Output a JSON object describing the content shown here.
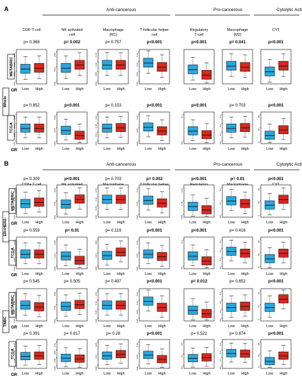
{
  "panels": [
    {
      "letter": "A",
      "groups": [
        {
          "label": "Anti-cancerous"
        },
        {
          "label": "Pro-cancerous"
        },
        {
          "label": "Cytolytic Activity"
        }
      ],
      "columns": [
        {
          "title": "CD8⁺T-cell"
        },
        {
          "title": "NK activated cell"
        },
        {
          "title": "Macrophage (M1)"
        },
        {
          "title": "T-follicular helper cell"
        },
        {
          "title": "Regulatory T-cell"
        },
        {
          "title": "Macrophage (M2)"
        },
        {
          "title": "CYT"
        }
      ],
      "side_labels": [
        {
          "text": "Whole"
        }
      ],
      "row_labels": [
        {
          "text": "METABRIC"
        },
        {
          "text": "TCGA"
        }
      ],
      "gr_label": "GR",
      "x_labels": [
        "Low",
        "High"
      ]
    },
    {
      "letter": "B",
      "groups": [
        {
          "label": "Anti-cancerous"
        },
        {
          "label": "Pro-cancerous"
        },
        {
          "label": "Cytolytic Activity"
        }
      ],
      "columns": [
        {
          "title": "CD8+ T-cell"
        },
        {
          "title": "NK activated cell"
        },
        {
          "title": "Macrophage (M1)"
        },
        {
          "title": "T-follicular helper cell"
        },
        {
          "title": "Regulatory T-cell"
        },
        {
          "title": "Macrophage (M2)"
        },
        {
          "title": "CYT"
        }
      ],
      "side_labels": [
        {
          "text": "ER+HER2-"
        },
        {
          "text": "TNBC"
        }
      ],
      "row_labels": [
        {
          "text": "METABRIC"
        },
        {
          "text": "TCGA"
        },
        {
          "text": "METABRIC"
        },
        {
          "text": "TCGA"
        }
      ],
      "gr_label": "GR",
      "x_labels": [
        "Low",
        "High"
      ]
    }
  ],
  "colors": {
    "low": "#29a8e0",
    "high": "#d9281c",
    "border": "#111111",
    "bg": "#ffffff"
  },
  "chart_data": {
    "type": "box",
    "categories": [
      "Low",
      "High"
    ],
    "rows": [
      {
        "pvalues": [
          "p= 0.368",
          "p= 0.002",
          "p= 0.757",
          "p<0.001",
          "p<0.001",
          "p= 0.041",
          "p<0.001"
        ],
        "bold": [
          false,
          true,
          false,
          true,
          true,
          true,
          true
        ],
        "ticks": [
          [
            "0.00",
            "0.05",
            "0.10",
            "0.15"
          ],
          [
            "0.00",
            "0.04",
            "0.08"
          ],
          [
            "0.00",
            "0.05",
            "0.10",
            "0.15"
          ],
          [
            "0.00",
            "0.05",
            "0.10",
            "0.15"
          ],
          [],
          [],
          []
        ],
        "low_med": [
          0.42,
          0.45,
          0.55,
          0.62,
          0.4,
          0.52,
          0.33
        ],
        "high_med": [
          0.45,
          0.55,
          0.55,
          0.48,
          0.22,
          0.48,
          0.52
        ]
      },
      {
        "pvalues": [
          "p= 0.852",
          "p<0.001",
          "p= 0.153",
          "p<0.001",
          "p<0.001",
          "p= 0.703",
          "p<0.001"
        ],
        "bold": [
          false,
          true,
          false,
          true,
          true,
          false,
          true
        ],
        "ticks": [
          [
            "0.00",
            "0.05",
            "0.10",
            "0.15"
          ],
          [
            "0.00",
            "0.04",
            "0.08"
          ],
          [
            "0.00",
            "0.04",
            "0.08",
            "0.12"
          ],
          [
            "0.00",
            "0.05",
            "0.10"
          ],
          [
            "0.0",
            "0.1"
          ],
          [
            "0.0",
            "0.1",
            "0.2",
            "0.3"
          ],
          [
            "0",
            "10",
            "20"
          ]
        ],
        "low_med": [
          0.48,
          0.4,
          0.48,
          0.52,
          0.38,
          0.48,
          0.22
        ],
        "high_med": [
          0.48,
          0.22,
          0.5,
          0.38,
          0.24,
          0.5,
          0.42
        ]
      },
      {
        "pvalues": [
          "p= 0.309",
          "p<0.001",
          "p= 0.703",
          "p= 0.002",
          "p<0.001",
          "p= 0.01",
          "p<0.001"
        ],
        "bold": [
          false,
          true,
          false,
          true,
          true,
          true,
          true
        ],
        "ticks": [
          [
            "0.00",
            "0.05",
            "0.10",
            "0.15"
          ],
          [
            "0.00",
            "0.04",
            "0.08"
          ],
          [
            "0.00",
            "0.05",
            "0.10",
            "0.15"
          ],
          [
            "0.00",
            "0.05",
            "0.10"
          ],
          [
            "0.00",
            "0.05",
            "0.10"
          ],
          [
            "0.0",
            "0.1",
            "0.2"
          ],
          [
            "0",
            "10",
            "20"
          ]
        ],
        "low_med": [
          0.4,
          0.38,
          0.55,
          0.52,
          0.3,
          0.5,
          0.35
        ],
        "high_med": [
          0.45,
          0.56,
          0.55,
          0.42,
          0.18,
          0.4,
          0.55
        ]
      },
      {
        "pvalues": [
          "p= 0.559",
          "p= 0.01",
          "p= 0.119",
          "p<0.001",
          "p<0.001",
          "p= 0.416",
          "p<0.001"
        ],
        "bold": [
          false,
          true,
          false,
          true,
          true,
          false,
          true
        ],
        "ticks": [
          [
            "0.00",
            "0.05",
            "0.10",
            "0.15"
          ],
          [
            "0.00",
            "0.04",
            "0.08"
          ],
          [
            "0.00",
            "0.04",
            "0.08"
          ],
          [
            "0.00",
            "0.05",
            "0.10"
          ],
          [
            "0.0",
            "0.1"
          ],
          [
            "0.0",
            "0.1",
            "0.2",
            "0.3"
          ],
          [
            "0",
            "10",
            "20"
          ]
        ],
        "low_med": [
          0.45,
          0.38,
          0.4,
          0.45,
          0.38,
          0.55,
          0.28
        ],
        "high_med": [
          0.45,
          0.22,
          0.52,
          0.36,
          0.2,
          0.48,
          0.48
        ]
      },
      {
        "pvalues": [
          "p= 0.545",
          "p= 0.505",
          "p= 0.497",
          "p<0.001",
          "p= 0.012",
          "p= 0.652",
          "p<0.001"
        ],
        "bold": [
          false,
          false,
          false,
          true,
          true,
          false,
          true
        ],
        "ticks": [
          [
            "0.00",
            "0.05",
            "0.10",
            "0.15"
          ],
          [
            "0.00",
            "0.04",
            "0.08"
          ],
          [
            "0.00",
            "0.05",
            "0.10",
            "0.15"
          ],
          [
            "0.00",
            "0.05",
            "0.10",
            "0.15"
          ],
          [],
          [
            "0.0",
            "0.1",
            "0.2",
            "0.3"
          ],
          [
            "0",
            "10",
            "20"
          ]
        ],
        "low_med": [
          0.48,
          0.44,
          0.48,
          0.62,
          0.3,
          0.4,
          0.4
        ],
        "high_med": [
          0.42,
          0.5,
          0.48,
          0.4,
          0.18,
          0.44,
          0.7
        ]
      },
      {
        "pvalues": [
          "p= 0.391",
          "p= 0.817",
          "p= 0.28",
          "p<0.001",
          "p= 0.522",
          "p= 0.874",
          "p<0.001"
        ],
        "bold": [
          false,
          false,
          false,
          true,
          false,
          false,
          true
        ],
        "ticks": [
          [
            "0.00",
            "0.05",
            "0.10",
            "0.15"
          ],
          [
            "0.00",
            "0.04",
            "0.08",
            "0.12"
          ],
          [
            "0.00",
            "0.04",
            "0.08"
          ],
          [
            "0.00",
            "0.05",
            "0.10"
          ],
          [
            "0.0",
            "0.1",
            "0.2"
          ],
          [
            "0.0",
            "0.1",
            "0.2",
            "0.3"
          ],
          [
            "0",
            "10",
            "20"
          ]
        ],
        "low_med": [
          0.4,
          0.33,
          0.42,
          0.45,
          0.32,
          0.52,
          0.2
        ],
        "high_med": [
          0.42,
          0.3,
          0.48,
          0.28,
          0.35,
          0.5,
          0.42
        ]
      }
    ]
  }
}
